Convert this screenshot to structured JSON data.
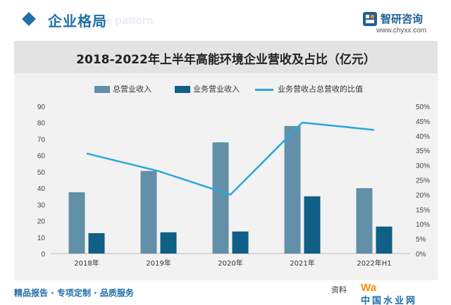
{
  "header": {
    "title": "企业格局",
    "ghost_text": "e pattern",
    "brand_name": "智研咨询",
    "brand_url": "www.chyxx.com"
  },
  "footer": {
    "tagline": "精品报告 · 专项定制 · 品质服务",
    "source": "资料",
    "watermark_mark": "Wa",
    "watermark_cn": "中国水业网"
  },
  "colors": {
    "total_revenue": "#6290a8",
    "business_revenue": "#0f5f86",
    "ratio_line": "#2aa6e0",
    "accent": "#1f6fa8"
  },
  "chart_data": {
    "type": "bar",
    "title": "2018-2022年上半年高能环境企业营收及占比（亿元）",
    "categories": [
      "2018年",
      "2019年",
      "2020年",
      "2021年",
      "2022年H1"
    ],
    "series": [
      {
        "name": "总营业收入",
        "kind": "bar",
        "axis": "left",
        "values": [
          37.5,
          50.5,
          68,
          78,
          40
        ]
      },
      {
        "name": "业务营业收入",
        "kind": "bar",
        "axis": "left",
        "values": [
          12.5,
          13,
          13.5,
          35,
          16.5
        ]
      },
      {
        "name": "业务营收占总营收的比值",
        "kind": "line",
        "axis": "right",
        "values": [
          0.34,
          0.28,
          0.2,
          0.445,
          0.42
        ]
      }
    ],
    "ylim_left": [
      0,
      90
    ],
    "yticks_left": [
      "0",
      "10",
      "20",
      "30",
      "40",
      "50",
      "60",
      "70",
      "80",
      "90"
    ],
    "ylim_right": [
      0,
      0.5
    ],
    "yticks_right": [
      "0%",
      "5%",
      "10%",
      "15%",
      "20%",
      "25%",
      "30%",
      "35%",
      "40%",
      "45%",
      "50%"
    ],
    "legend_position": "top",
    "grid": false
  }
}
